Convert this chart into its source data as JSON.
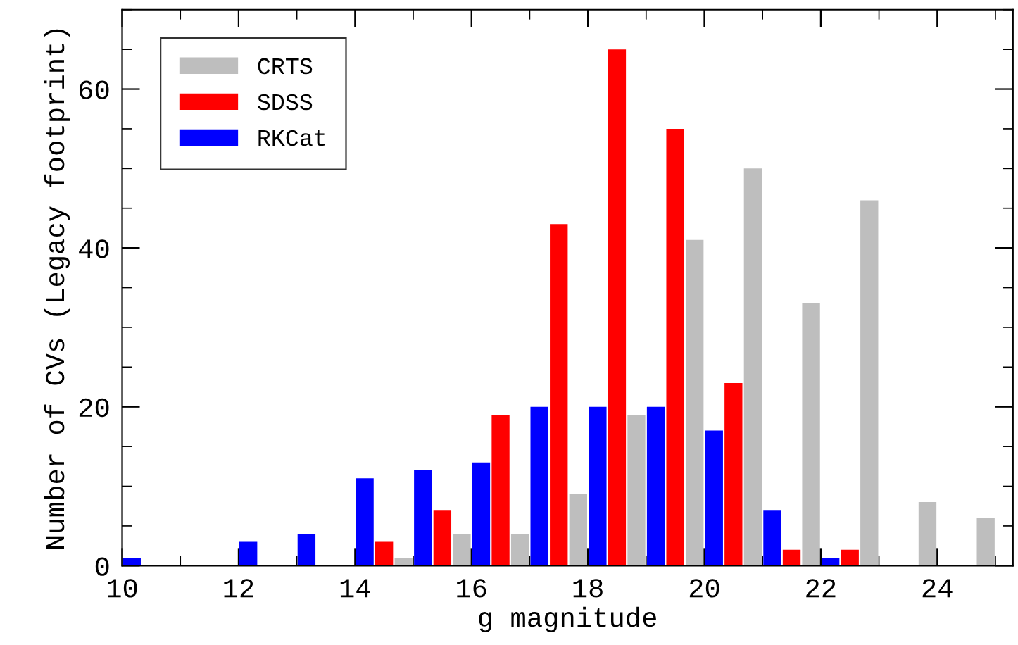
{
  "chart_data": {
    "type": "histogram",
    "xlabel": "g magnitude",
    "ylabel": "Number of CVs (Legacy footprint)",
    "bins": [
      10,
      11,
      12,
      13,
      14,
      15,
      16,
      17,
      18,
      19,
      20,
      21,
      22,
      23,
      24,
      25
    ],
    "series": [
      {
        "name": "CRTS",
        "color": "#bebebe",
        "values": [
          0,
          0,
          0,
          0,
          1,
          4,
          4,
          9,
          19,
          41,
          50,
          33,
          46,
          8,
          6
        ]
      },
      {
        "name": "SDSS",
        "color": "#ff0000",
        "values": [
          0,
          0,
          0,
          0,
          3,
          7,
          19,
          43,
          65,
          55,
          23,
          2,
          2,
          0,
          0
        ]
      },
      {
        "name": "RKCat",
        "color": "#0000ff",
        "values": [
          1,
          0,
          3,
          4,
          11,
          12,
          13,
          20,
          20,
          20,
          17,
          7,
          1,
          0,
          0
        ]
      }
    ],
    "xlim": [
      10,
      25.3
    ],
    "xticks": [
      10,
      12,
      14,
      16,
      18,
      20,
      22,
      24
    ],
    "ylim": [
      0,
      70
    ],
    "yticks": [
      0,
      20,
      40,
      60
    ],
    "legend": "top left",
    "grid": false
  }
}
